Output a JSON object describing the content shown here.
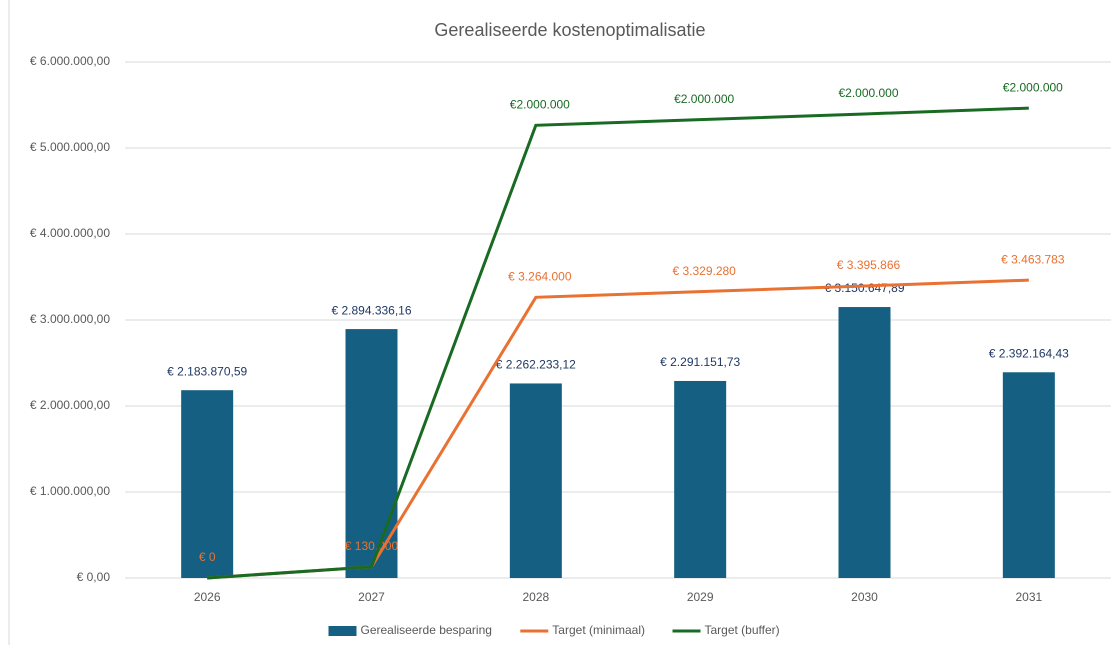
{
  "chart_data": {
    "type": "combo",
    "title": "Gerealiseerde kostenoptimalisatie",
    "categories": [
      "2026",
      "2027",
      "2028",
      "2029",
      "2030",
      "2031"
    ],
    "ylim": [
      0,
      6000000
    ],
    "yticks": [
      {
        "value": 0,
        "label": "€ 0,00"
      },
      {
        "value": 1000000,
        "label": "€ 1.000.000,00"
      },
      {
        "value": 2000000,
        "label": "€ 2.000.000,00"
      },
      {
        "value": 3000000,
        "label": "€ 3.000.000,00"
      },
      {
        "value": 4000000,
        "label": "€ 4.000.000,00"
      },
      {
        "value": 5000000,
        "label": "€ 5.000.000,00"
      },
      {
        "value": 6000000,
        "label": "€ 6.000.000,00"
      }
    ],
    "grid": true,
    "legend": "bottom",
    "stacked_lines": true,
    "series": [
      {
        "name": "Gerealiseerde besparing",
        "type": "bar",
        "color": "#156082",
        "values": [
          2183870.59,
          2894336.16,
          2262233.12,
          2291151.73,
          3150647.89,
          2392164.43
        ],
        "value_labels": [
          "€ 2.183.870,59",
          "€ 2.894.336,16",
          "€ 2.262.233,12",
          "€ 2.291.151,73",
          "€ 3.150.647,89",
          "€ 2.392.164,43"
        ]
      },
      {
        "name": "Target (minimaal)",
        "type": "line",
        "color": "#e97132",
        "values": [
          0,
          130000,
          3264000,
          3329280,
          3395866,
          3463783
        ],
        "value_labels": [
          "€ 0",
          "€ 130.000",
          "€ 3.264.000",
          "€ 3.329.280",
          "€ 3.395.866",
          "€ 3.463.783"
        ]
      },
      {
        "name": "Target (buffer)",
        "type": "line",
        "color": "#196b24",
        "values": [
          0,
          0,
          2000000,
          2000000,
          2000000,
          2000000
        ],
        "value_labels": [
          null,
          null,
          "€2.000.000",
          "€2.000.000",
          "€2.000.000",
          "€2.000.000"
        ]
      }
    ]
  }
}
